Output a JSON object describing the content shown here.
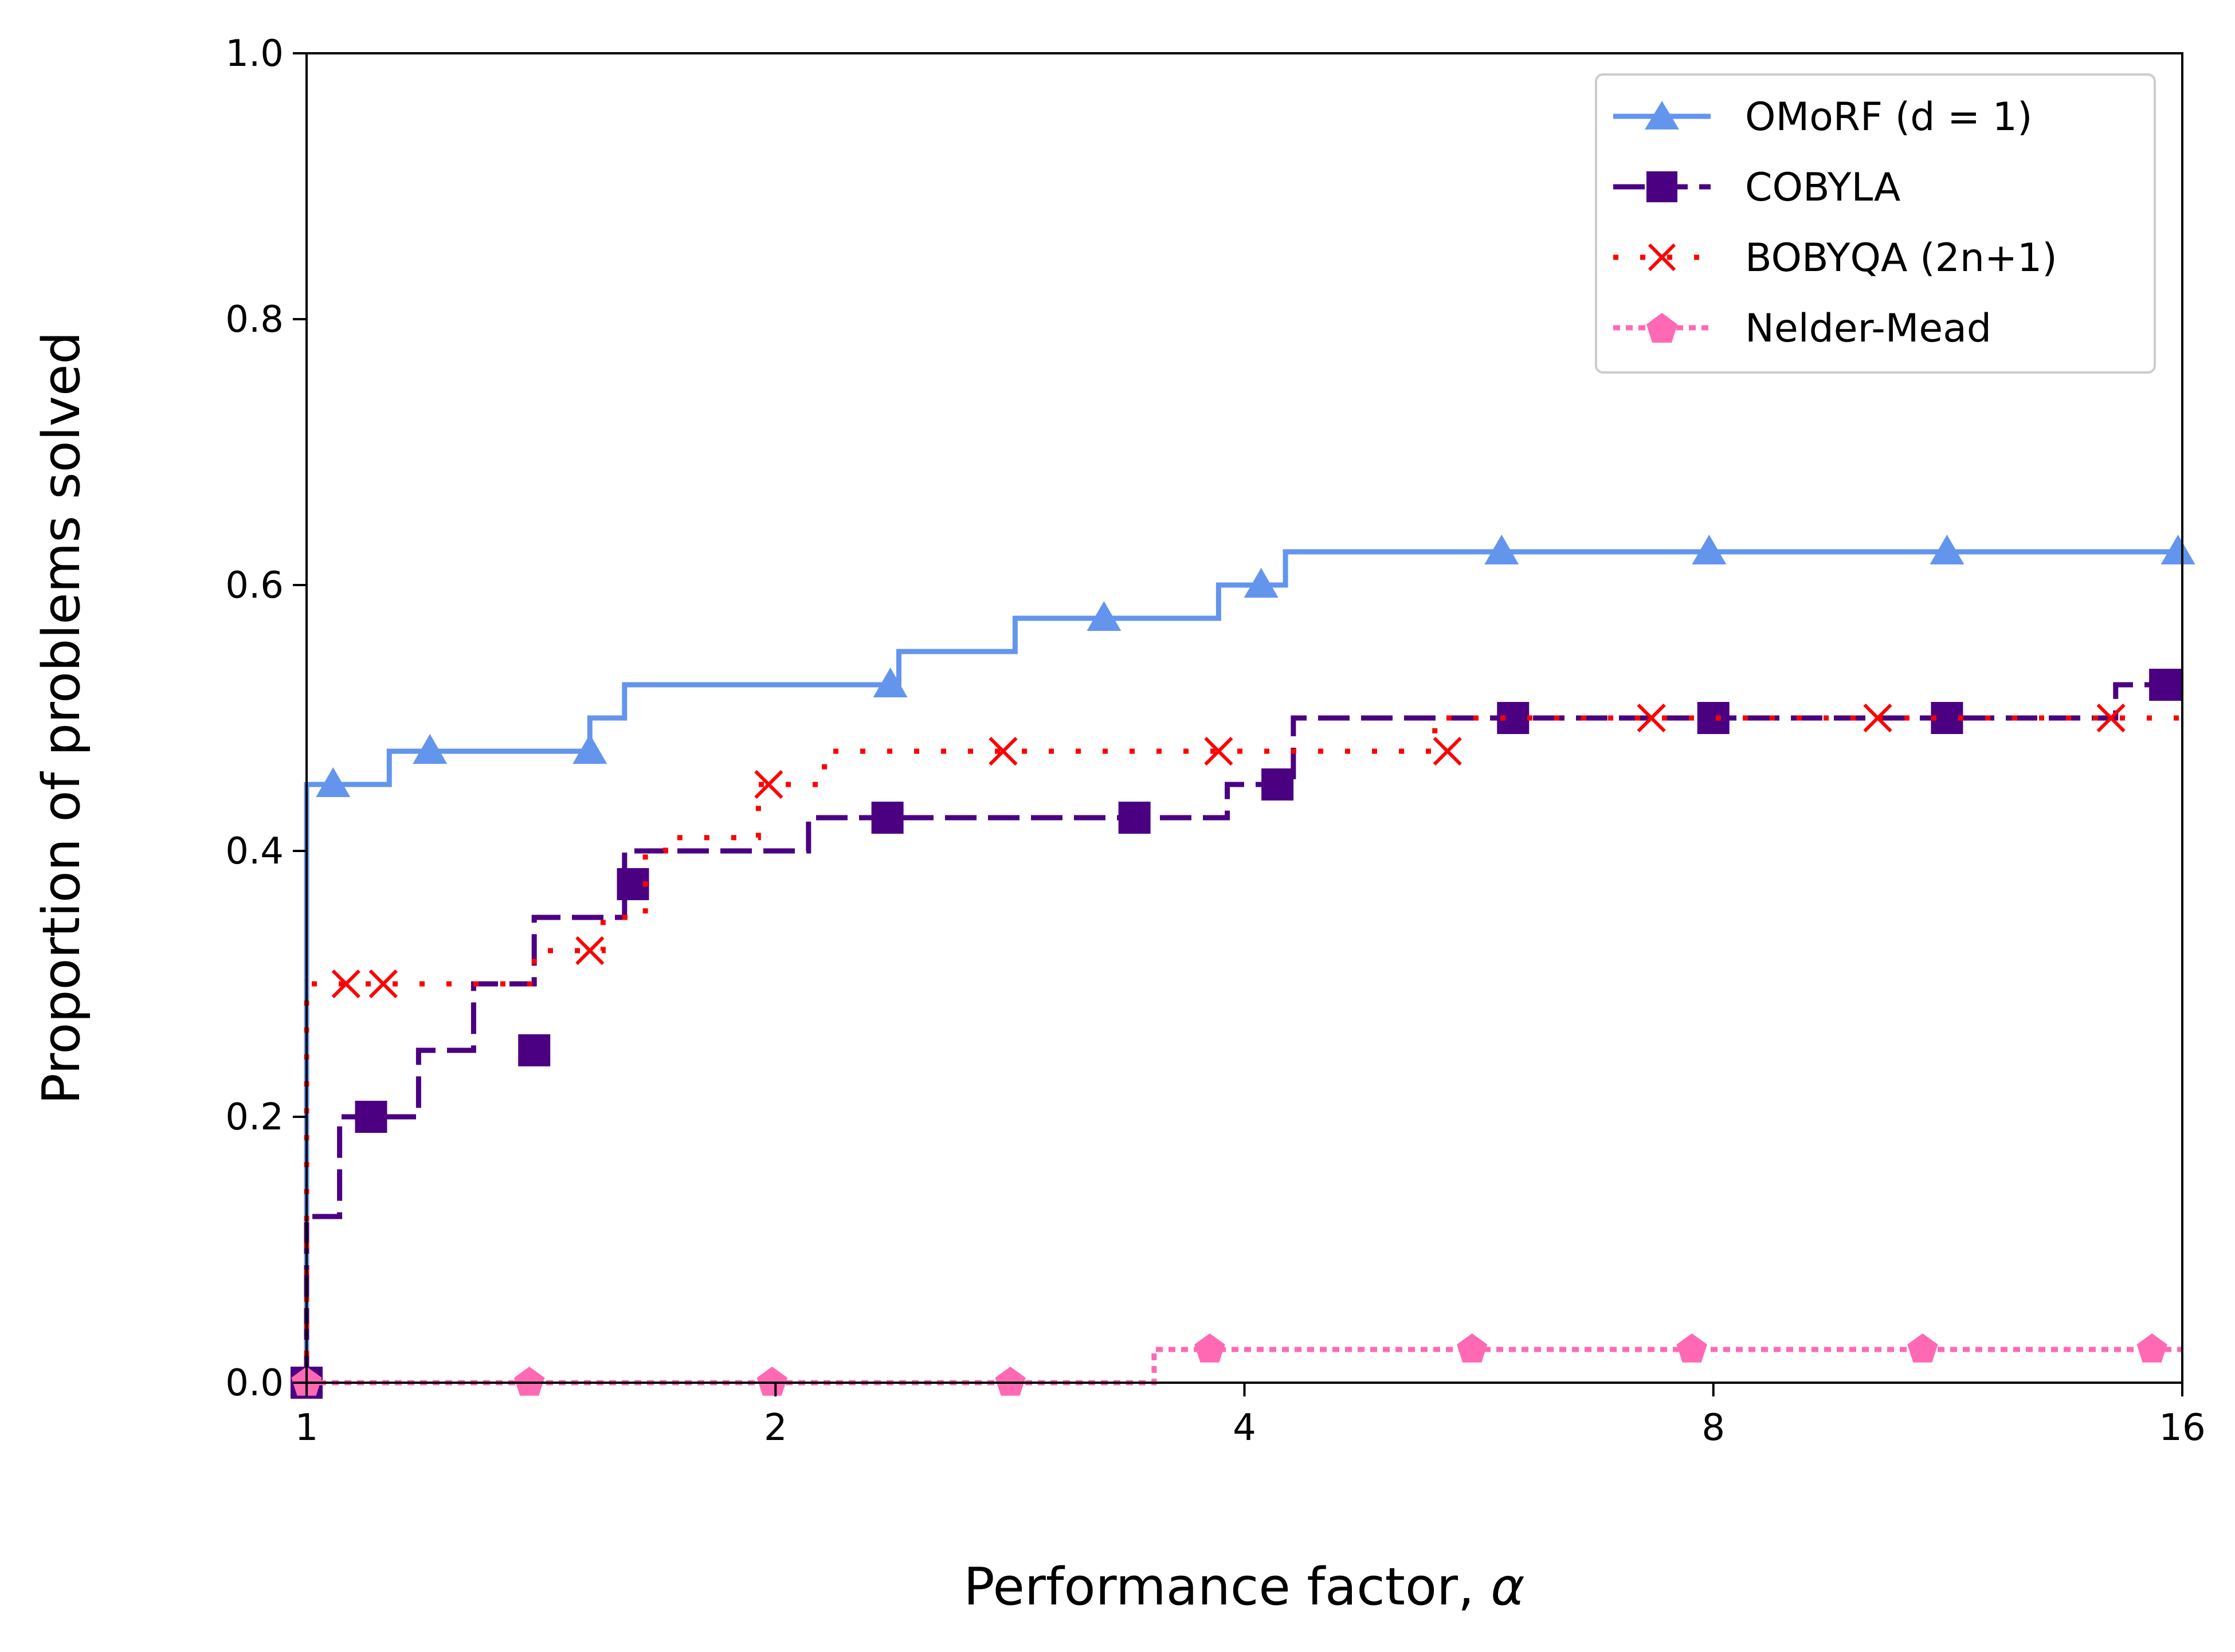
{
  "chart_data": {
    "type": "line",
    "step": true,
    "title": "",
    "xlabel": "Performance factor, ",
    "xlabel_symbol": "α",
    "ylabel": "Proportion of problems solved",
    "xscale": "log2",
    "xlim": [
      1,
      16
    ],
    "ylim": [
      0,
      1
    ],
    "xticks": [
      1,
      2,
      4,
      8,
      16
    ],
    "xtick_labels": [
      "1",
      "2",
      "4",
      "8",
      "16"
    ],
    "yticks": [
      0,
      0.2,
      0.4,
      0.6,
      0.8,
      1.0
    ],
    "ytick_labels": [
      "0.0",
      "0.2",
      "0.4",
      "0.6",
      "0.8",
      "1.0"
    ],
    "grid": false,
    "legend_position": "top-right",
    "series": [
      {
        "name": "OMoRF (d = 1)",
        "color": "#6495ED",
        "linestyle": "solid",
        "marker": "triangle",
        "steps": [
          [
            1,
            0
          ],
          [
            1.0,
            0.45
          ],
          [
            1.13,
            0.475
          ],
          [
            1.52,
            0.5
          ],
          [
            1.6,
            0.525
          ],
          [
            2.4,
            0.55
          ],
          [
            2.85,
            0.575
          ],
          [
            3.85,
            0.6
          ],
          [
            4.25,
            0.625
          ],
          [
            16,
            0.625
          ]
        ],
        "markers": [
          [
            1.04,
            0.45
          ],
          [
            1.2,
            0.475
          ],
          [
            1.52,
            0.475
          ],
          [
            2.37,
            0.525
          ],
          [
            3.25,
            0.575
          ],
          [
            4.1,
            0.6
          ],
          [
            5.85,
            0.625
          ],
          [
            7.95,
            0.625
          ],
          [
            11.3,
            0.625
          ],
          [
            15.9,
            0.625
          ]
        ]
      },
      {
        "name": "COBYLA",
        "color": "#4B0082",
        "linestyle": "dashed",
        "marker": "square",
        "steps": [
          [
            1,
            0
          ],
          [
            1.0,
            0.125
          ],
          [
            1.05,
            0.2
          ],
          [
            1.18,
            0.25
          ],
          [
            1.28,
            0.3
          ],
          [
            1.4,
            0.35
          ],
          [
            1.6,
            0.4
          ],
          [
            2.1,
            0.425
          ],
          [
            3.9,
            0.45
          ],
          [
            4.3,
            0.5
          ],
          [
            14.5,
            0.525
          ],
          [
            16,
            0.525
          ]
        ],
        "markers": [
          [
            1.0,
            0.0
          ],
          [
            1.1,
            0.2
          ],
          [
            1.4,
            0.25
          ],
          [
            1.62,
            0.375
          ],
          [
            2.36,
            0.425
          ],
          [
            3.4,
            0.425
          ],
          [
            4.2,
            0.45
          ],
          [
            5.95,
            0.5
          ],
          [
            8.0,
            0.5
          ],
          [
            11.3,
            0.5
          ],
          [
            15.6,
            0.525
          ]
        ]
      },
      {
        "name": "BOBYQA (2n+1)",
        "color": "#FF0000",
        "linestyle": "dotted",
        "marker": "x",
        "steps": [
          [
            1,
            0
          ],
          [
            1.0,
            0.3
          ],
          [
            1.4,
            0.325
          ],
          [
            1.55,
            0.35
          ],
          [
            1.65,
            0.4
          ],
          [
            1.7,
            0.41
          ],
          [
            1.95,
            0.45
          ],
          [
            2.15,
            0.475
          ],
          [
            5.3,
            0.5
          ],
          [
            16,
            0.5
          ]
        ],
        "markers": [
          [
            1.06,
            0.3
          ],
          [
            1.12,
            0.3
          ],
          [
            1.52,
            0.325
          ],
          [
            1.98,
            0.45
          ],
          [
            2.8,
            0.475
          ],
          [
            3.85,
            0.475
          ],
          [
            5.4,
            0.475
          ],
          [
            7.3,
            0.5
          ],
          [
            10.2,
            0.5
          ],
          [
            14.4,
            0.5
          ]
        ]
      },
      {
        "name": "Nelder-Mead",
        "color": "#FF69B4",
        "linestyle": "dotted",
        "marker": "pentagon",
        "steps": [
          [
            1,
            0
          ],
          [
            3.5,
            0.025
          ],
          [
            16,
            0.025
          ]
        ],
        "markers": [
          [
            1.0,
            0.0
          ],
          [
            1.39,
            0.0
          ],
          [
            1.99,
            0.0
          ],
          [
            2.83,
            0.0
          ],
          [
            3.8,
            0.025
          ],
          [
            5.6,
            0.025
          ],
          [
            7.75,
            0.025
          ],
          [
            10.9,
            0.025
          ],
          [
            15.3,
            0.025
          ]
        ]
      }
    ]
  }
}
